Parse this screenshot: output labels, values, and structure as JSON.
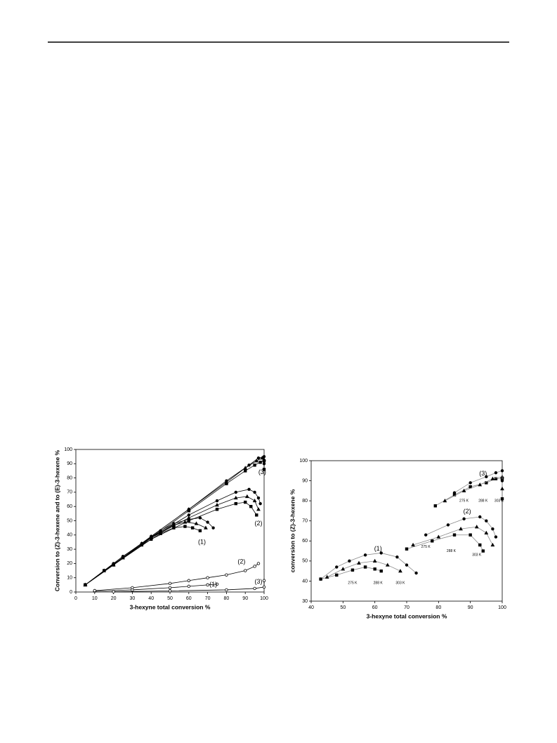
{
  "chart_data": [
    {
      "type": "line",
      "xlabel": "3-hexyne total conversion %",
      "ylabel": "Conversion to (Z)-3-hexene and to (E)-3-hexene %",
      "xlim": [
        0,
        100
      ],
      "ylim": [
        0,
        100
      ],
      "xticks": [
        0,
        10,
        20,
        30,
        40,
        50,
        60,
        70,
        80,
        90,
        100
      ],
      "yticks": [
        0,
        10,
        20,
        30,
        40,
        50,
        60,
        70,
        80,
        90,
        100
      ],
      "series": [
        {
          "color": "#000000",
          "marker": "square",
          "filled": true,
          "x": [
            5,
            15,
            25,
            35,
            45,
            52,
            58,
            62,
            66
          ],
          "values": [
            5,
            15,
            24,
            33,
            41,
            45,
            46,
            45,
            43
          ]
        },
        {
          "color": "#000000",
          "marker": "triangle",
          "filled": true,
          "x": [
            5,
            15,
            25,
            35,
            45,
            52,
            58,
            64,
            69
          ],
          "values": [
            5,
            15,
            24,
            34,
            42,
            47,
            49,
            48,
            45
          ]
        },
        {
          "color": "#000000",
          "marker": "circle",
          "filled": true,
          "x": [
            5,
            15,
            25,
            35,
            45,
            52,
            60,
            66,
            70,
            73
          ],
          "values": [
            5,
            15,
            25,
            34,
            43,
            48,
            51,
            52,
            49,
            45
          ]
        },
        {
          "color": "#000000",
          "marker": "square",
          "filled": true,
          "x": [
            5,
            20,
            40,
            60,
            75,
            85,
            90,
            93,
            96
          ],
          "values": [
            5,
            19,
            37,
            50,
            58,
            62,
            63,
            60,
            54
          ]
        },
        {
          "color": "#000000",
          "marker": "triangle",
          "filled": true,
          "x": [
            5,
            20,
            40,
            60,
            75,
            85,
            91,
            95,
            97
          ],
          "values": [
            5,
            19,
            38,
            52,
            61,
            66,
            67,
            64,
            58
          ]
        },
        {
          "color": "#000000",
          "marker": "circle",
          "filled": true,
          "x": [
            5,
            20,
            40,
            60,
            75,
            85,
            92,
            95,
            97,
            98
          ],
          "values": [
            5,
            19,
            38,
            54,
            64,
            70,
            72,
            70,
            66,
            62
          ]
        },
        {
          "color": "#000000",
          "marker": "square",
          "filled": true,
          "x": [
            5,
            20,
            40,
            60,
            80,
            90,
            95,
            98,
            100,
            100
          ],
          "values": [
            5,
            19,
            38,
            57,
            76,
            85,
            89,
            91,
            92,
            86
          ]
        },
        {
          "color": "#000000",
          "marker": "triangle",
          "filled": true,
          "x": [
            5,
            20,
            40,
            60,
            80,
            90,
            96,
            99,
            100
          ],
          "values": [
            5,
            19,
            39,
            58,
            77,
            87,
            92,
            94,
            93
          ]
        },
        {
          "color": "#000000",
          "marker": "circle",
          "filled": true,
          "x": [
            5,
            20,
            40,
            60,
            80,
            92,
            97,
            100,
            100
          ],
          "values": [
            5,
            20,
            39,
            58,
            78,
            89,
            94,
            95,
            90
          ]
        },
        {
          "color": "#000000",
          "marker": "circle",
          "filled": false,
          "x": [
            10,
            30,
            50,
            60,
            70,
            75
          ],
          "values": [
            0.5,
            1.5,
            3,
            4,
            5,
            5.5
          ]
        },
        {
          "color": "#000000",
          "marker": "circle",
          "filled": false,
          "x": [
            10,
            30,
            50,
            60,
            70,
            80,
            90,
            95,
            97
          ],
          "values": [
            1,
            3,
            6,
            8,
            10,
            12,
            15,
            18,
            20
          ]
        },
        {
          "color": "#000000",
          "marker": "circle",
          "filled": false,
          "x": [
            20,
            50,
            80,
            95,
            100,
            100
          ],
          "values": [
            0.2,
            0.8,
            1.5,
            2.5,
            3.5,
            8
          ]
        }
      ],
      "annotations": [
        {
          "text": "(1)",
          "x": 67,
          "y": 35
        },
        {
          "text": "(2)",
          "x": 97,
          "y": 48
        },
        {
          "text": "(3)",
          "x": 99,
          "y": 84
        },
        {
          "text": "(2)",
          "x": 88,
          "y": 21
        },
        {
          "text": "(1)",
          "x": 73,
          "y": 5
        },
        {
          "text": "(3)",
          "x": 97,
          "y": 7
        }
      ]
    },
    {
      "type": "line",
      "xlabel": "3-hexyne total conversion %",
      "ylabel": "conversion to (Z)-3-hexene %",
      "xlim": [
        40,
        100
      ],
      "ylim": [
        30,
        100
      ],
      "xticks": [
        40,
        50,
        60,
        70,
        80,
        90,
        100
      ],
      "yticks": [
        30,
        40,
        50,
        60,
        70,
        80,
        90,
        100
      ],
      "series": [
        {
          "color": "#888888",
          "marker": "square",
          "filled": true,
          "x": [
            43,
            48,
            53,
            57,
            60,
            62
          ],
          "values": [
            41,
            43,
            45.5,
            47,
            46,
            45
          ]
        },
        {
          "color": "#888888",
          "marker": "triangle",
          "filled": true,
          "x": [
            45,
            50,
            55,
            60,
            64,
            68
          ],
          "values": [
            42,
            46,
            49,
            50,
            48,
            45
          ]
        },
        {
          "color": "#888888",
          "marker": "circle",
          "filled": true,
          "x": [
            43,
            48,
            52,
            57,
            62,
            67,
            70,
            73
          ],
          "values": [
            41,
            47,
            50,
            53,
            54,
            52,
            48,
            44
          ]
        },
        {
          "color": "#888888",
          "marker": "square",
          "filled": true,
          "x": [
            70,
            78,
            85,
            90,
            93,
            94
          ],
          "values": [
            56,
            60,
            63,
            63,
            58,
            55
          ]
        },
        {
          "color": "#888888",
          "marker": "triangle",
          "filled": true,
          "x": [
            72,
            80,
            87,
            92,
            95,
            97
          ],
          "values": [
            58,
            62,
            66,
            67,
            64,
            58
          ]
        },
        {
          "color": "#888888",
          "marker": "circle",
          "filled": true,
          "x": [
            76,
            83,
            88,
            93,
            95,
            97,
            98
          ],
          "values": [
            63,
            68,
            71,
            72,
            70,
            66,
            62
          ]
        },
        {
          "color": "#888888",
          "marker": "square",
          "filled": true,
          "x": [
            79,
            85,
            90,
            95,
            98,
            100,
            100
          ],
          "values": [
            77.5,
            83,
            87,
            89,
            91,
            91,
            81
          ]
        },
        {
          "color": "#888888",
          "marker": "triangle",
          "filled": true,
          "x": [
            82,
            88,
            93,
            97,
            100,
            100
          ],
          "values": [
            80,
            85,
            88,
            91,
            92,
            86
          ]
        },
        {
          "color": "#888888",
          "marker": "circle",
          "filled": true,
          "x": [
            85,
            90,
            95,
            98,
            100,
            100
          ],
          "values": [
            84,
            89,
            92,
            94,
            95,
            90
          ]
        }
      ],
      "annotations": [
        {
          "text": "(1)",
          "x": 61,
          "y": 56
        },
        {
          "text": "(2)",
          "x": 89,
          "y": 74.5
        },
        {
          "text": "(3)",
          "x": 94,
          "y": 93.5
        },
        {
          "text": "275 K",
          "x": 53,
          "y": 39
        },
        {
          "text": "288 K",
          "x": 61,
          "y": 39
        },
        {
          "text": "303 K",
          "x": 68,
          "y": 39
        },
        {
          "text": "275 K",
          "x": 76,
          "y": 57
        },
        {
          "text": "288 K",
          "x": 84,
          "y": 55
        },
        {
          "text": "303 K",
          "x": 92,
          "y": 53
        },
        {
          "text": "275 K",
          "x": 88,
          "y": 80
        },
        {
          "text": "288 K",
          "x": 94,
          "y": 80
        },
        {
          "text": "303 K",
          "x": 99,
          "y": 80
        }
      ]
    }
  ]
}
